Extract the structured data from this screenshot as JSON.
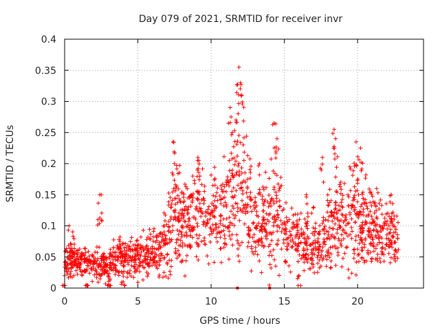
{
  "chart_data": {
    "type": "scatter",
    "title": "Day 079 of 2021, SRMTID for receiver invr",
    "xlabel": "GPS time / hours",
    "ylabel": "SRMTID / TECUs",
    "xlim": [
      0,
      24.5
    ],
    "ylim": [
      0,
      0.4
    ],
    "x_ticks": [
      "0",
      "5",
      "10",
      "15",
      "20"
    ],
    "x_tick_values": [
      0,
      5,
      10,
      15,
      20
    ],
    "y_ticks": [
      "0",
      "0.05",
      "0.1",
      "0.15",
      "0.2",
      "0.25",
      "0.3",
      "0.35",
      "0.4"
    ],
    "y_tick_values": [
      0,
      0.05,
      0.1,
      0.15,
      0.2,
      0.25,
      0.3,
      0.35,
      0.4
    ],
    "grid": true,
    "marker": "+",
    "color": "#ff0000",
    "baseline_markers_x": [
      11.8,
      14.0
    ],
    "profile": [
      [
        0.0,
        0.045,
        0.025
      ],
      [
        0.5,
        0.05,
        0.03
      ],
      [
        1.0,
        0.045,
        0.025
      ],
      [
        1.5,
        0.04,
        0.02
      ],
      [
        2.0,
        0.035,
        0.02
      ],
      [
        2.5,
        0.04,
        0.025
      ],
      [
        3.0,
        0.035,
        0.02
      ],
      [
        3.5,
        0.05,
        0.03
      ],
      [
        4.0,
        0.045,
        0.025
      ],
      [
        4.5,
        0.05,
        0.03
      ],
      [
        5.0,
        0.05,
        0.03
      ],
      [
        5.5,
        0.055,
        0.03
      ],
      [
        6.0,
        0.055,
        0.03
      ],
      [
        6.5,
        0.06,
        0.035
      ],
      [
        7.0,
        0.08,
        0.05
      ],
      [
        7.5,
        0.11,
        0.07
      ],
      [
        8.0,
        0.1,
        0.06
      ],
      [
        8.5,
        0.11,
        0.06
      ],
      [
        9.0,
        0.12,
        0.07
      ],
      [
        9.5,
        0.115,
        0.06
      ],
      [
        10.0,
        0.11,
        0.06
      ],
      [
        10.5,
        0.11,
        0.06
      ],
      [
        11.0,
        0.12,
        0.07
      ],
      [
        11.5,
        0.15,
        0.09
      ],
      [
        12.0,
        0.16,
        0.1
      ],
      [
        12.5,
        0.13,
        0.08
      ],
      [
        13.0,
        0.11,
        0.06
      ],
      [
        13.5,
        0.1,
        0.06
      ],
      [
        14.0,
        0.11,
        0.07
      ],
      [
        14.5,
        0.12,
        0.07
      ],
      [
        15.0,
        0.09,
        0.05
      ],
      [
        15.5,
        0.085,
        0.05
      ],
      [
        16.0,
        0.08,
        0.04
      ],
      [
        16.5,
        0.07,
        0.035
      ],
      [
        17.0,
        0.065,
        0.03
      ],
      [
        17.5,
        0.07,
        0.035
      ],
      [
        18.0,
        0.09,
        0.06
      ],
      [
        18.5,
        0.12,
        0.07
      ],
      [
        19.0,
        0.11,
        0.06
      ],
      [
        19.5,
        0.12,
        0.07
      ],
      [
        20.0,
        0.11,
        0.07
      ],
      [
        20.5,
        0.1,
        0.06
      ],
      [
        21.0,
        0.09,
        0.05
      ],
      [
        21.5,
        0.085,
        0.05
      ],
      [
        22.0,
        0.08,
        0.04
      ],
      [
        22.5,
        0.085,
        0.04
      ],
      [
        22.8,
        0.07,
        0.03
      ]
    ],
    "peaks": [
      [
        0.3,
        0.1
      ],
      [
        2.4,
        0.15
      ],
      [
        2.5,
        0.15
      ],
      [
        7.4,
        0.235
      ],
      [
        7.5,
        0.2
      ],
      [
        9.1,
        0.21
      ],
      [
        11.3,
        0.29
      ],
      [
        11.7,
        0.27
      ],
      [
        11.9,
        0.355
      ],
      [
        12.0,
        0.33
      ],
      [
        12.1,
        0.31
      ],
      [
        13.3,
        0.2
      ],
      [
        14.3,
        0.265
      ],
      [
        14.5,
        0.24
      ],
      [
        16.5,
        0.15
      ],
      [
        17.0,
        0.13
      ],
      [
        17.6,
        0.21
      ],
      [
        18.4,
        0.255
      ],
      [
        18.5,
        0.24
      ],
      [
        19.9,
        0.235
      ],
      [
        20.2,
        0.225
      ],
      [
        21.3,
        0.16
      ],
      [
        22.3,
        0.15
      ],
      [
        0.0,
        0.02
      ],
      [
        1.5,
        0.005
      ],
      [
        3.0,
        0.005
      ],
      [
        4.0,
        0.01
      ],
      [
        16.0,
        0.02
      ]
    ]
  }
}
